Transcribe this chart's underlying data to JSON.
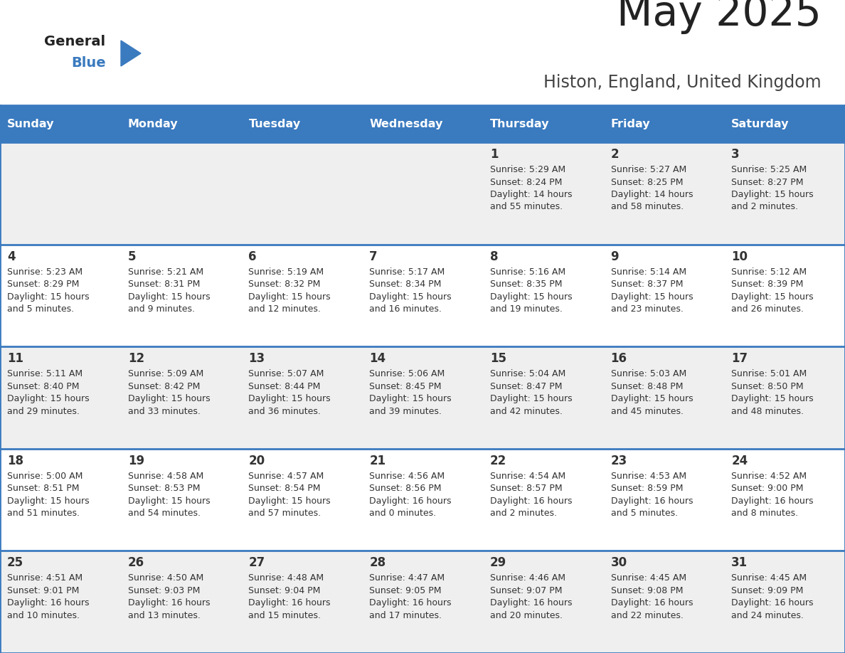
{
  "title": "May 2025",
  "subtitle": "Histon, England, United Kingdom",
  "days_of_week": [
    "Sunday",
    "Monday",
    "Tuesday",
    "Wednesday",
    "Thursday",
    "Friday",
    "Saturday"
  ],
  "header_bg": "#3a7abf",
  "header_text": "#ffffff",
  "cell_bg_odd": "#efefef",
  "cell_bg_even": "#ffffff",
  "cell_text": "#333333",
  "border_color": "#3a7abf",
  "title_color": "#222222",
  "subtitle_color": "#444444",
  "logo_general_color": "#222222",
  "logo_blue_color": "#3a7abf",
  "weeks": [
    [
      {
        "day": null,
        "text": ""
      },
      {
        "day": null,
        "text": ""
      },
      {
        "day": null,
        "text": ""
      },
      {
        "day": null,
        "text": ""
      },
      {
        "day": 1,
        "text": "Sunrise: 5:29 AM\nSunset: 8:24 PM\nDaylight: 14 hours\nand 55 minutes."
      },
      {
        "day": 2,
        "text": "Sunrise: 5:27 AM\nSunset: 8:25 PM\nDaylight: 14 hours\nand 58 minutes."
      },
      {
        "day": 3,
        "text": "Sunrise: 5:25 AM\nSunset: 8:27 PM\nDaylight: 15 hours\nand 2 minutes."
      }
    ],
    [
      {
        "day": 4,
        "text": "Sunrise: 5:23 AM\nSunset: 8:29 PM\nDaylight: 15 hours\nand 5 minutes."
      },
      {
        "day": 5,
        "text": "Sunrise: 5:21 AM\nSunset: 8:31 PM\nDaylight: 15 hours\nand 9 minutes."
      },
      {
        "day": 6,
        "text": "Sunrise: 5:19 AM\nSunset: 8:32 PM\nDaylight: 15 hours\nand 12 minutes."
      },
      {
        "day": 7,
        "text": "Sunrise: 5:17 AM\nSunset: 8:34 PM\nDaylight: 15 hours\nand 16 minutes."
      },
      {
        "day": 8,
        "text": "Sunrise: 5:16 AM\nSunset: 8:35 PM\nDaylight: 15 hours\nand 19 minutes."
      },
      {
        "day": 9,
        "text": "Sunrise: 5:14 AM\nSunset: 8:37 PM\nDaylight: 15 hours\nand 23 minutes."
      },
      {
        "day": 10,
        "text": "Sunrise: 5:12 AM\nSunset: 8:39 PM\nDaylight: 15 hours\nand 26 minutes."
      }
    ],
    [
      {
        "day": 11,
        "text": "Sunrise: 5:11 AM\nSunset: 8:40 PM\nDaylight: 15 hours\nand 29 minutes."
      },
      {
        "day": 12,
        "text": "Sunrise: 5:09 AM\nSunset: 8:42 PM\nDaylight: 15 hours\nand 33 minutes."
      },
      {
        "day": 13,
        "text": "Sunrise: 5:07 AM\nSunset: 8:44 PM\nDaylight: 15 hours\nand 36 minutes."
      },
      {
        "day": 14,
        "text": "Sunrise: 5:06 AM\nSunset: 8:45 PM\nDaylight: 15 hours\nand 39 minutes."
      },
      {
        "day": 15,
        "text": "Sunrise: 5:04 AM\nSunset: 8:47 PM\nDaylight: 15 hours\nand 42 minutes."
      },
      {
        "day": 16,
        "text": "Sunrise: 5:03 AM\nSunset: 8:48 PM\nDaylight: 15 hours\nand 45 minutes."
      },
      {
        "day": 17,
        "text": "Sunrise: 5:01 AM\nSunset: 8:50 PM\nDaylight: 15 hours\nand 48 minutes."
      }
    ],
    [
      {
        "day": 18,
        "text": "Sunrise: 5:00 AM\nSunset: 8:51 PM\nDaylight: 15 hours\nand 51 minutes."
      },
      {
        "day": 19,
        "text": "Sunrise: 4:58 AM\nSunset: 8:53 PM\nDaylight: 15 hours\nand 54 minutes."
      },
      {
        "day": 20,
        "text": "Sunrise: 4:57 AM\nSunset: 8:54 PM\nDaylight: 15 hours\nand 57 minutes."
      },
      {
        "day": 21,
        "text": "Sunrise: 4:56 AM\nSunset: 8:56 PM\nDaylight: 16 hours\nand 0 minutes."
      },
      {
        "day": 22,
        "text": "Sunrise: 4:54 AM\nSunset: 8:57 PM\nDaylight: 16 hours\nand 2 minutes."
      },
      {
        "day": 23,
        "text": "Sunrise: 4:53 AM\nSunset: 8:59 PM\nDaylight: 16 hours\nand 5 minutes."
      },
      {
        "day": 24,
        "text": "Sunrise: 4:52 AM\nSunset: 9:00 PM\nDaylight: 16 hours\nand 8 minutes."
      }
    ],
    [
      {
        "day": 25,
        "text": "Sunrise: 4:51 AM\nSunset: 9:01 PM\nDaylight: 16 hours\nand 10 minutes."
      },
      {
        "day": 26,
        "text": "Sunrise: 4:50 AM\nSunset: 9:03 PM\nDaylight: 16 hours\nand 13 minutes."
      },
      {
        "day": 27,
        "text": "Sunrise: 4:48 AM\nSunset: 9:04 PM\nDaylight: 16 hours\nand 15 minutes."
      },
      {
        "day": 28,
        "text": "Sunrise: 4:47 AM\nSunset: 9:05 PM\nDaylight: 16 hours\nand 17 minutes."
      },
      {
        "day": 29,
        "text": "Sunrise: 4:46 AM\nSunset: 9:07 PM\nDaylight: 16 hours\nand 20 minutes."
      },
      {
        "day": 30,
        "text": "Sunrise: 4:45 AM\nSunset: 9:08 PM\nDaylight: 16 hours\nand 22 minutes."
      },
      {
        "day": 31,
        "text": "Sunrise: 4:45 AM\nSunset: 9:09 PM\nDaylight: 16 hours\nand 24 minutes."
      }
    ]
  ]
}
